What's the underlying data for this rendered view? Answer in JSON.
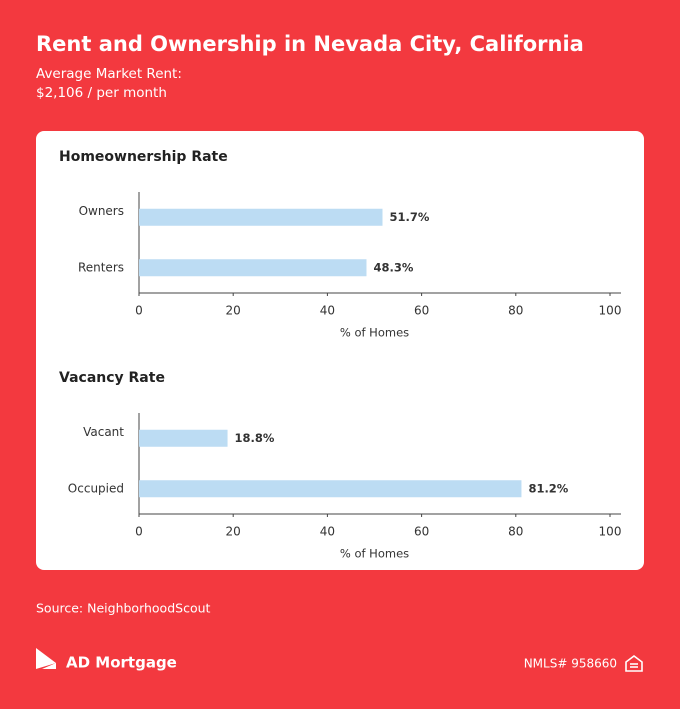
{
  "header": {
    "title": "Rent and Ownership in Nevada City, California",
    "subtitle_label": "Average Market Rent:",
    "subtitle_value": "$2,106 / per month"
  },
  "chart_data": [
    {
      "type": "bar",
      "orientation": "horizontal",
      "title": "Homeownership Rate",
      "categories": [
        "Owners",
        "Renters"
      ],
      "values": [
        51.7,
        48.3
      ],
      "value_labels": [
        "51.7%",
        "48.3%"
      ],
      "color": "#bcdcf3",
      "xlim": [
        0,
        100
      ],
      "xticks": [
        0,
        20,
        40,
        60,
        80,
        100
      ],
      "xlabel": "% of Homes",
      "grid": false
    },
    {
      "type": "bar",
      "orientation": "horizontal",
      "title": "Vacancy Rate",
      "categories": [
        "Vacant",
        "Occupied"
      ],
      "values": [
        18.8,
        81.2
      ],
      "value_labels": [
        "18.8%",
        "81.2%"
      ],
      "color": "#bcdcf3",
      "xlim": [
        0,
        100
      ],
      "xticks": [
        0,
        20,
        40,
        60,
        80,
        100
      ],
      "xlabel": "% of Homes",
      "grid": false
    }
  ],
  "footer": {
    "source": "Source: NeighborhoodScout",
    "brand": "AD Mortgage",
    "nmls": "NMLS# 958660"
  }
}
